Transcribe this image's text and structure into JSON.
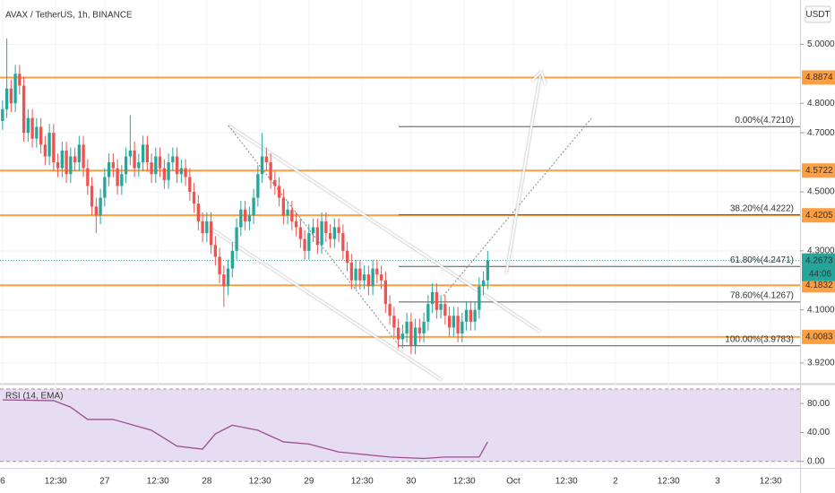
{
  "header": {
    "title": "AVAX / TetherUS, 1h, BINANCE",
    "currency": "USDT"
  },
  "chart_data": {
    "type": "candlestick",
    "xlim": [
      -0.6,
      187.4
    ],
    "xticks": [
      {
        "value": 0,
        "label": "6"
      },
      {
        "value": 12.5,
        "label": "12:30"
      },
      {
        "value": 24,
        "label": "27"
      },
      {
        "value": 36.5,
        "label": "12:30"
      },
      {
        "value": 48,
        "label": "28"
      },
      {
        "value": 60.5,
        "label": "12:30"
      },
      {
        "value": 72,
        "label": "29"
      },
      {
        "value": 84.5,
        "label": "12:30"
      },
      {
        "value": 96,
        "label": "30"
      },
      {
        "value": 108.5,
        "label": "12:30"
      },
      {
        "value": 120,
        "label": "Oct"
      },
      {
        "value": 132.5,
        "label": "12:30"
      },
      {
        "value": 144,
        "label": "2"
      },
      {
        "value": 156.5,
        "label": "12:30"
      },
      {
        "value": 168,
        "label": "3"
      },
      {
        "value": 180.5,
        "label": "12:30"
      }
    ],
    "ylim": [
      3.85,
      5.15
    ],
    "yticks": [
      {
        "value": 3.92,
        "label": "3.9200"
      },
      {
        "value": 4.1,
        "label": "4.1000"
      },
      {
        "value": 4.3,
        "label": "4.3000"
      },
      {
        "value": 4.5,
        "label": "4.5000"
      },
      {
        "value": 4.7,
        "label": "4.7000"
      },
      {
        "value": 4.8,
        "label": "4.8000"
      },
      {
        "value": 5,
        "label": "5.0000"
      }
    ],
    "up_color": "#26a69a",
    "down_color": "#ef5350",
    "candles": [
      [
        4.74,
        4.81,
        4.71,
        4.78
      ],
      [
        4.78,
        5.02,
        4.75,
        4.85
      ],
      [
        4.85,
        4.88,
        4.77,
        4.8
      ],
      [
        4.8,
        4.93,
        4.77,
        4.9
      ],
      [
        4.9,
        4.93,
        4.83,
        4.86
      ],
      [
        4.86,
        4.89,
        4.67,
        4.7
      ],
      [
        4.7,
        4.78,
        4.67,
        4.75
      ],
      [
        4.75,
        4.78,
        4.65,
        4.68
      ],
      [
        4.68,
        4.75,
        4.65,
        4.72
      ],
      [
        4.72,
        4.75,
        4.63,
        4.66
      ],
      [
        4.66,
        4.69,
        4.59,
        4.62
      ],
      [
        4.62,
        4.73,
        4.59,
        4.7
      ],
      [
        4.7,
        4.73,
        4.57,
        4.6
      ],
      [
        4.6,
        4.63,
        4.55,
        4.58
      ],
      [
        4.58,
        4.67,
        4.55,
        4.64
      ],
      [
        4.64,
        4.67,
        4.53,
        4.56
      ],
      [
        4.56,
        4.65,
        4.53,
        4.62
      ],
      [
        4.62,
        4.65,
        4.57,
        4.6
      ],
      [
        4.6,
        4.69,
        4.57,
        4.66
      ],
      [
        4.66,
        4.69,
        4.55,
        4.58
      ],
      [
        4.58,
        4.61,
        4.49,
        4.52
      ],
      [
        4.52,
        4.55,
        4.42,
        4.45
      ],
      [
        4.45,
        4.48,
        4.36,
        4.42
      ],
      [
        4.42,
        4.51,
        4.39,
        4.48
      ],
      [
        4.48,
        4.58,
        4.45,
        4.55
      ],
      [
        4.55,
        4.63,
        4.52,
        4.6
      ],
      [
        4.6,
        4.63,
        4.55,
        4.58
      ],
      [
        4.58,
        4.61,
        4.49,
        4.52
      ],
      [
        4.52,
        4.59,
        4.49,
        4.56
      ],
      [
        4.56,
        4.65,
        4.53,
        4.62
      ],
      [
        4.62,
        4.76,
        4.59,
        4.64
      ],
      [
        4.64,
        4.67,
        4.55,
        4.58
      ],
      [
        4.58,
        4.63,
        4.55,
        4.6
      ],
      [
        4.6,
        4.69,
        4.57,
        4.66
      ],
      [
        4.66,
        4.69,
        4.57,
        4.6
      ],
      [
        4.6,
        4.63,
        4.53,
        4.56
      ],
      [
        4.56,
        4.65,
        4.53,
        4.62
      ],
      [
        4.62,
        4.65,
        4.55,
        4.58
      ],
      [
        4.58,
        4.61,
        4.51,
        4.54
      ],
      [
        4.54,
        4.63,
        4.51,
        4.6
      ],
      [
        4.6,
        4.65,
        4.57,
        4.62
      ],
      [
        4.62,
        4.65,
        4.53,
        4.56
      ],
      [
        4.56,
        4.61,
        4.53,
        4.58
      ],
      [
        4.58,
        4.61,
        4.52,
        4.55
      ],
      [
        4.55,
        4.58,
        4.47,
        4.5
      ],
      [
        4.5,
        4.53,
        4.43,
        4.46
      ],
      [
        4.46,
        4.49,
        4.37,
        4.4
      ],
      [
        4.4,
        4.43,
        4.33,
        4.36
      ],
      [
        4.36,
        4.43,
        4.33,
        4.4
      ],
      [
        4.4,
        4.43,
        4.29,
        4.32
      ],
      [
        4.32,
        4.35,
        4.25,
        4.28
      ],
      [
        4.28,
        4.31,
        4.19,
        4.22
      ],
      [
        4.22,
        4.25,
        4.11,
        4.18
      ],
      [
        4.18,
        4.27,
        4.15,
        4.24
      ],
      [
        4.24,
        4.33,
        4.21,
        4.3
      ],
      [
        4.3,
        4.41,
        4.27,
        4.38
      ],
      [
        4.38,
        4.47,
        4.35,
        4.44
      ],
      [
        4.44,
        4.47,
        4.37,
        4.4
      ],
      [
        4.4,
        4.45,
        4.37,
        4.42
      ],
      [
        4.42,
        4.51,
        4.39,
        4.48
      ],
      [
        4.48,
        4.59,
        4.45,
        4.56
      ],
      [
        4.56,
        4.7,
        4.53,
        4.62
      ],
      [
        4.62,
        4.65,
        4.57,
        4.6
      ],
      [
        4.6,
        4.63,
        4.51,
        4.54
      ],
      [
        4.54,
        4.57,
        4.49,
        4.52
      ],
      [
        4.52,
        4.55,
        4.45,
        4.48
      ],
      [
        4.48,
        4.51,
        4.39,
        4.42
      ],
      [
        4.42,
        4.47,
        4.39,
        4.44
      ],
      [
        4.44,
        4.47,
        4.37,
        4.4
      ],
      [
        4.4,
        4.43,
        4.35,
        4.38
      ],
      [
        4.38,
        4.41,
        4.31,
        4.34
      ],
      [
        4.34,
        4.37,
        4.27,
        4.3
      ],
      [
        4.3,
        4.39,
        4.27,
        4.36
      ],
      [
        4.36,
        4.41,
        4.33,
        4.38
      ],
      [
        4.38,
        4.41,
        4.29,
        4.32
      ],
      [
        4.32,
        4.43,
        4.29,
        4.4
      ],
      [
        4.4,
        4.43,
        4.33,
        4.36
      ],
      [
        4.36,
        4.39,
        4.31,
        4.34
      ],
      [
        4.34,
        4.41,
        4.31,
        4.38
      ],
      [
        4.38,
        4.41,
        4.33,
        4.36
      ],
      [
        4.36,
        4.39,
        4.27,
        4.3
      ],
      [
        4.3,
        4.33,
        4.23,
        4.26
      ],
      [
        4.26,
        4.29,
        4.17,
        4.2
      ],
      [
        4.2,
        4.27,
        4.17,
        4.24
      ],
      [
        4.24,
        4.27,
        4.17,
        4.2
      ],
      [
        4.2,
        4.25,
        4.17,
        4.22
      ],
      [
        4.22,
        4.25,
        4.15,
        4.18
      ],
      [
        4.18,
        4.27,
        4.15,
        4.24
      ],
      [
        4.24,
        4.27,
        4.19,
        4.22
      ],
      [
        4.22,
        4.25,
        4.17,
        4.2
      ],
      [
        4.2,
        4.23,
        4.09,
        4.12
      ],
      [
        4.12,
        4.15,
        4.05,
        4.08
      ],
      [
        4.08,
        4.11,
        4.01,
        4.04
      ],
      [
        4.04,
        4.07,
        3.97,
        4.0
      ],
      [
        4.0,
        4.05,
        3.97,
        4.02
      ],
      [
        4.02,
        4.09,
        3.99,
        4.06
      ],
      [
        4.06,
        4.09,
        3.95,
        3.98
      ],
      [
        3.98,
        4.07,
        3.95,
        4.04
      ],
      [
        4.04,
        4.07,
        3.99,
        4.02
      ],
      [
        4.02,
        4.09,
        3.99,
        4.06
      ],
      [
        4.06,
        4.15,
        4.03,
        4.12
      ],
      [
        4.12,
        4.19,
        4.09,
        4.16
      ],
      [
        4.16,
        4.19,
        4.07,
        4.1
      ],
      [
        4.1,
        4.15,
        4.07,
        4.12
      ],
      [
        4.12,
        4.15,
        4.05,
        4.08
      ],
      [
        4.08,
        4.11,
        4.01,
        4.04
      ],
      [
        4.04,
        4.11,
        4.01,
        4.08
      ],
      [
        4.08,
        4.11,
        3.99,
        4.02
      ],
      [
        4.02,
        4.09,
        3.99,
        4.06
      ],
      [
        4.06,
        4.13,
        4.03,
        4.1
      ],
      [
        4.1,
        4.13,
        4.03,
        4.06
      ],
      [
        4.06,
        4.13,
        4.03,
        4.1
      ],
      [
        4.1,
        4.21,
        4.07,
        4.18
      ],
      [
        4.18,
        4.23,
        4.15,
        4.2
      ],
      [
        4.2,
        4.3,
        4.17,
        4.2673
      ]
    ],
    "levels": {
      "color": "#ff9f40",
      "values": [
        4.8874,
        4.5722,
        4.4205,
        4.1832,
        4.0083
      ]
    },
    "last_price": 4.2673,
    "countdown": "44:06",
    "last_color": "#26a69a",
    "fib": [
      {
        "label": "0.00%(4.7210)",
        "value": 4.721
      },
      {
        "label": "38.20%(4.4222)",
        "value": 4.4222
      },
      {
        "label": "61.80%(4.2471)",
        "value": 4.2471
      },
      {
        "label": "78.60%(4.1267)",
        "value": 4.1267
      },
      {
        "label": "100.00%(3.9783)",
        "value": 3.9783
      }
    ],
    "rsi": {
      "title": "RSI (14, EMA)",
      "color": "#9c4f8f",
      "x": [
        0,
        12,
        16,
        20,
        22,
        26,
        35,
        41,
        47,
        50,
        54,
        60,
        66,
        72,
        79,
        91,
        99,
        104,
        112,
        114
      ],
      "values": [
        85,
        84,
        75,
        58,
        58,
        58,
        43,
        21,
        17,
        38,
        50,
        43,
        27,
        24,
        13,
        6,
        4,
        6,
        6,
        27
      ],
      "ylim": [
        -9,
        105
      ],
      "band": [
        0,
        100
      ],
      "yticks": [
        {
          "value": 80,
          "label": "80.00"
        },
        {
          "value": 40,
          "label": "40.00"
        },
        {
          "value": 0,
          "label": "0.00"
        }
      ]
    }
  }
}
